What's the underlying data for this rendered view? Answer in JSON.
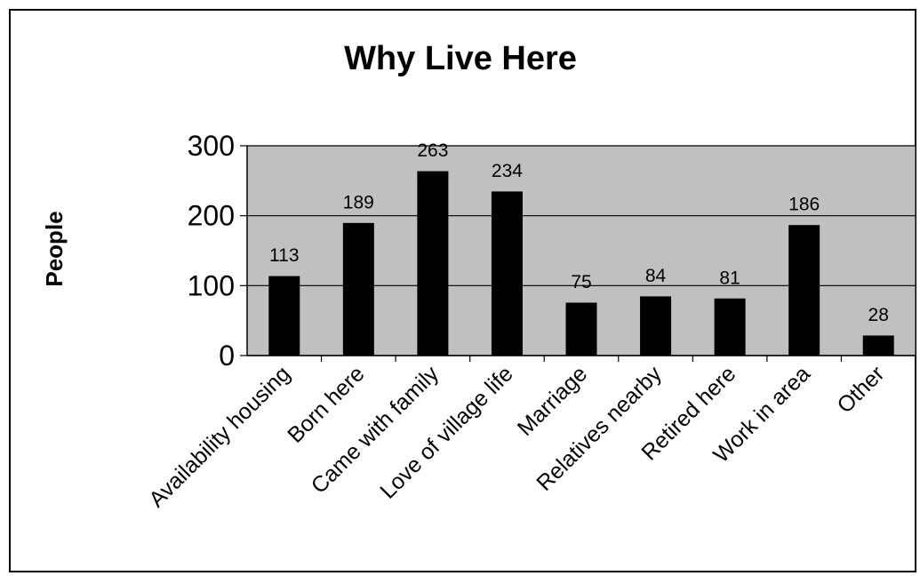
{
  "chart_data": {
    "type": "bar",
    "title": "Why Live Here",
    "ylabel": "People",
    "xlabel": "",
    "ylim": [
      0,
      300
    ],
    "yticks": [
      0,
      100,
      200,
      300
    ],
    "grid": true,
    "categories": [
      "Availability housing",
      "Born here",
      "Came with family",
      "Love of village life",
      "Marriage",
      "Relatives nearby",
      "Retired here",
      "Work in area",
      "Other"
    ],
    "values": [
      113,
      189,
      263,
      234,
      75,
      84,
      81,
      186,
      28
    ],
    "colors": {
      "plot_bg": "#c0c0c0",
      "bar": "#000000",
      "grid": "#000000"
    }
  }
}
